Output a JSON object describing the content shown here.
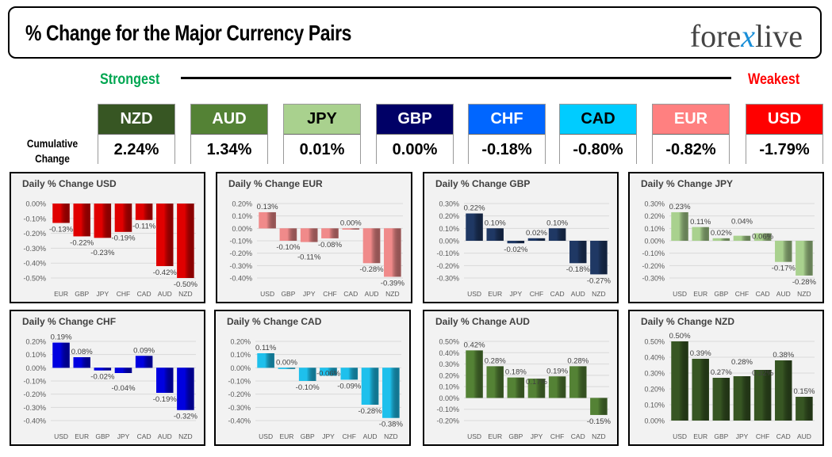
{
  "header": {
    "title": "% Change for the Major Currency Pairs",
    "logo": "forexlive"
  },
  "scale": {
    "strongest": "Strongest",
    "weakest": "Weakest"
  },
  "cumulative": {
    "label_line1": "Cumulative",
    "label_line2": "Change",
    "items": [
      {
        "currency": "NZD",
        "value": "2.24%",
        "color": "#375623",
        "text_color": "#ffffff"
      },
      {
        "currency": "AUD",
        "value": "1.34%",
        "color": "#548235",
        "text_color": "#ffffff"
      },
      {
        "currency": "JPY",
        "value": "0.01%",
        "color": "#a9d18e",
        "text_color": "#000000"
      },
      {
        "currency": "GBP",
        "value": "0.00%",
        "color": "#000066",
        "text_color": "#ffffff"
      },
      {
        "currency": "CHF",
        "value": "-0.18%",
        "color": "#0066ff",
        "text_color": "#ffffff"
      },
      {
        "currency": "CAD",
        "value": "-0.80%",
        "color": "#00ccff",
        "text_color": "#000000"
      },
      {
        "currency": "EUR",
        "value": "-0.82%",
        "color": "#ff8080",
        "text_color": "#ffffff"
      },
      {
        "currency": "USD",
        "value": "-1.79%",
        "color": "#ff0000",
        "text_color": "#ffffff"
      }
    ]
  },
  "chart_data": [
    {
      "type": "bar",
      "title": "Daily % Change USD",
      "categories": [
        "EUR",
        "GBP",
        "JPY",
        "CHF",
        "CAD",
        "AUD",
        "NZD"
      ],
      "values": [
        -0.13,
        -0.22,
        -0.23,
        -0.19,
        -0.11,
        -0.42,
        -0.5
      ],
      "ylim": [
        -0.5,
        0
      ],
      "ystep": 0.1,
      "color": "#e00000",
      "grid": true
    },
    {
      "type": "bar",
      "title": "Daily % Change EUR",
      "categories": [
        "USD",
        "GBP",
        "JPY",
        "CHF",
        "CAD",
        "AUD",
        "NZD"
      ],
      "values": [
        0.13,
        -0.1,
        -0.11,
        -0.08,
        0.0,
        -0.28,
        -0.39
      ],
      "ylim": [
        -0.4,
        0.2
      ],
      "ystep": 0.1,
      "color": "#f08a8a",
      "grid": true
    },
    {
      "type": "bar",
      "title": "Daily % Change GBP",
      "categories": [
        "USD",
        "EUR",
        "JPY",
        "CHF",
        "CAD",
        "AUD",
        "NZD"
      ],
      "values": [
        0.22,
        0.1,
        -0.02,
        0.02,
        0.1,
        -0.18,
        -0.27
      ],
      "ylim": [
        -0.3,
        0.3
      ],
      "ystep": 0.1,
      "color": "#1f3864",
      "grid": true
    },
    {
      "type": "bar",
      "title": "Daily % Change JPY",
      "categories": [
        "USD",
        "EUR",
        "GBP",
        "CHF",
        "CAD",
        "AUD",
        "NZD"
      ],
      "values": [
        0.23,
        0.11,
        0.02,
        0.04,
        0.06,
        -0.17,
        -0.28
      ],
      "ylim": [
        -0.3,
        0.3
      ],
      "ystep": 0.1,
      "color": "#a9d18e",
      "grid": true
    },
    {
      "type": "bar",
      "title": "Daily % Change CHF",
      "categories": [
        "USD",
        "EUR",
        "GBP",
        "JPY",
        "CAD",
        "AUD",
        "NZD"
      ],
      "values": [
        0.19,
        0.08,
        -0.02,
        -0.04,
        0.09,
        -0.19,
        -0.32
      ],
      "ylim": [
        -0.4,
        0.2
      ],
      "ystep": 0.1,
      "color": "#0000e0",
      "grid": true
    },
    {
      "type": "bar",
      "title": "Daily % Change CAD",
      "categories": [
        "USD",
        "EUR",
        "GBP",
        "JPY",
        "CHF",
        "AUD",
        "NZD"
      ],
      "values": [
        0.11,
        0.0,
        -0.1,
        -0.06,
        -0.09,
        -0.28,
        -0.38
      ],
      "ylim": [
        -0.4,
        0.2
      ],
      "ystep": 0.1,
      "color": "#1ec0ec",
      "grid": true
    },
    {
      "type": "bar",
      "title": "Daily % Change AUD",
      "categories": [
        "USD",
        "EUR",
        "GBP",
        "JPY",
        "CHF",
        "CAD",
        "NZD"
      ],
      "values": [
        0.42,
        0.28,
        0.18,
        0.17,
        0.19,
        0.28,
        -0.15
      ],
      "ylim": [
        -0.2,
        0.5
      ],
      "ystep": 0.1,
      "color": "#548235",
      "grid": true
    },
    {
      "type": "bar",
      "title": "Daily % Change NZD",
      "categories": [
        "USD",
        "EUR",
        "GBP",
        "JPY",
        "CHF",
        "CAD",
        "AUD"
      ],
      "values": [
        0.5,
        0.39,
        0.27,
        0.28,
        0.32,
        0.38,
        0.15
      ],
      "ylim": [
        0,
        0.5
      ],
      "ystep": 0.1,
      "color": "#375623",
      "grid": true
    }
  ]
}
